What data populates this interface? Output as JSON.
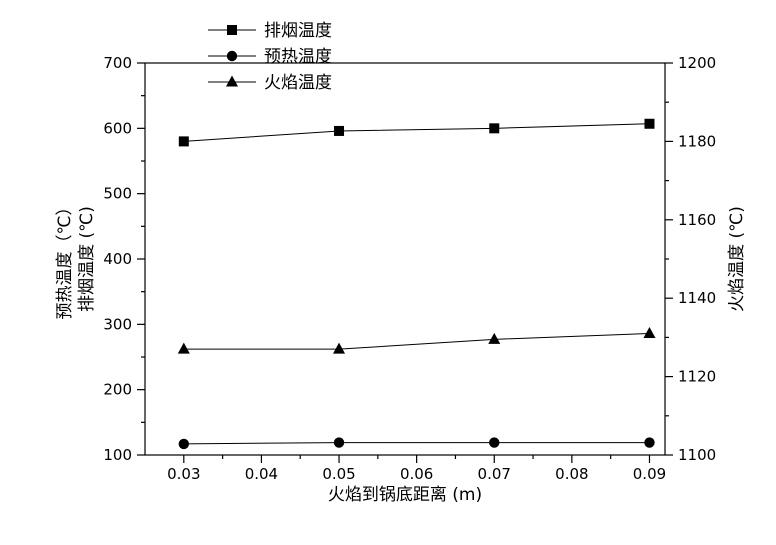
{
  "chart_data": {
    "type": "line",
    "title": "",
    "xlabel": "火焰到锅底距离 (m)",
    "ylabel_left_line1": "预热温度（℃）",
    "ylabel_left_line2": "排烟温度 (℃)",
    "ylabel_right": "火焰温度 (℃)",
    "xlim": [
      0.025,
      0.092
    ],
    "ylim_left": [
      100,
      700
    ],
    "ylim_right": [
      1100,
      1200
    ],
    "x_ticks": [
      "0.03",
      "0.04",
      "0.05",
      "0.06",
      "0.07",
      "0.08",
      "0.09"
    ],
    "y_ticks_left": [
      "100",
      "200",
      "300",
      "400",
      "500",
      "600",
      "700"
    ],
    "y_ticks_right": [
      "1100",
      "1120",
      "1140",
      "1160",
      "1180",
      "1200"
    ],
    "x": [
      0.03,
      0.05,
      0.07,
      0.09
    ],
    "legend_position": "top-center",
    "grid": false,
    "series": [
      {
        "name": "排烟温度",
        "axis": "left",
        "marker": "square",
        "values": [
          580,
          596,
          600,
          607
        ]
      },
      {
        "name": "预热温度",
        "axis": "left",
        "marker": "circle",
        "values": [
          117,
          119,
          119,
          119
        ]
      },
      {
        "name": "火焰温度",
        "axis": "right",
        "marker": "triangle",
        "values": [
          1127,
          1127,
          1129.5,
          1131
        ]
      }
    ]
  }
}
